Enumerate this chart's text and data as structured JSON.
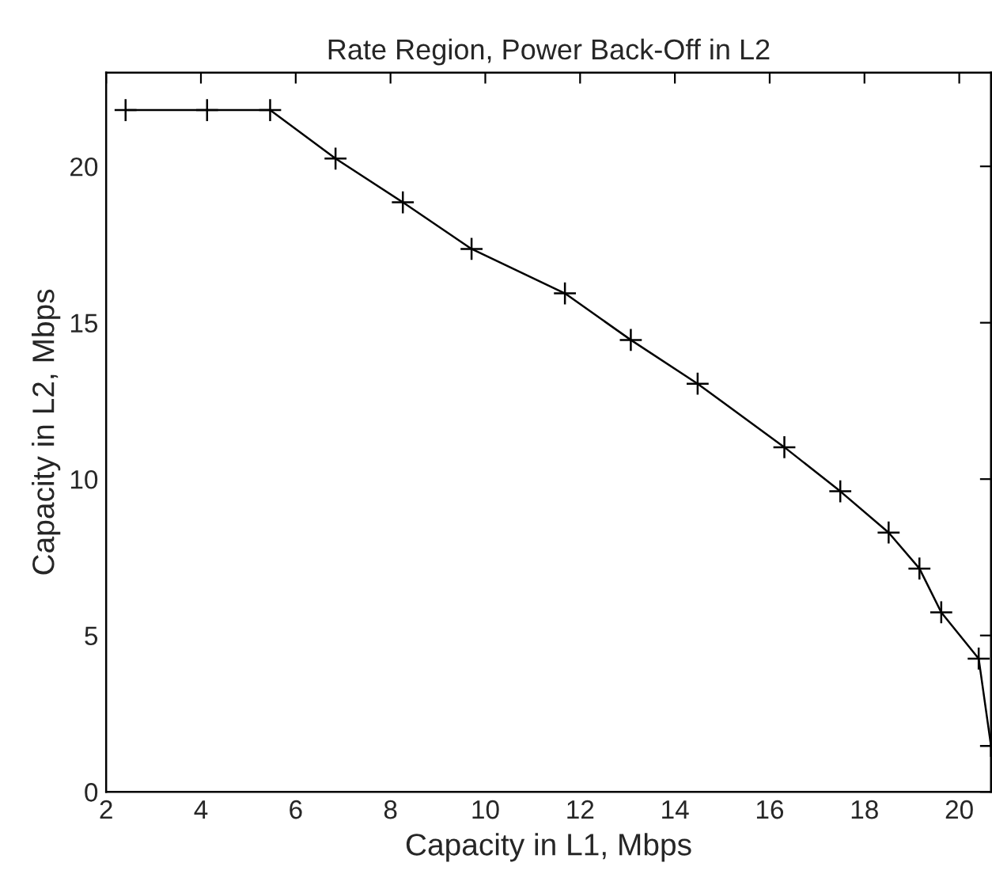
{
  "chart_data": {
    "type": "line",
    "title": "Rate Region, Power Back-Off in L2",
    "xlabel": "Capacity in L1, Mbps",
    "ylabel": "Capacity in L2, Mbps",
    "series": [
      {
        "color": "#000000",
        "x": [
          2.41,
          4.13,
          5.46,
          6.84,
          8.26,
          9.71,
          11.68,
          13.07,
          14.48,
          16.31,
          17.49,
          18.51,
          19.16,
          19.62,
          20.41,
          20.67
        ],
        "values": [
          21.8,
          21.8,
          21.8,
          20.25,
          18.85,
          17.36,
          15.94,
          14.45,
          13.05,
          11.02,
          9.61,
          8.29,
          7.14,
          5.74,
          4.26,
          1.47
        ]
      }
    ],
    "xlim": [
      2,
      20.67
    ],
    "ylim": [
      0,
      23
    ],
    "xticks": [
      2,
      4,
      6,
      8,
      10,
      12,
      14,
      16,
      18,
      20
    ],
    "yticks": [
      0,
      5,
      10,
      15,
      20
    ],
    "grid": false,
    "marker": "cross",
    "line_style": "solid"
  }
}
